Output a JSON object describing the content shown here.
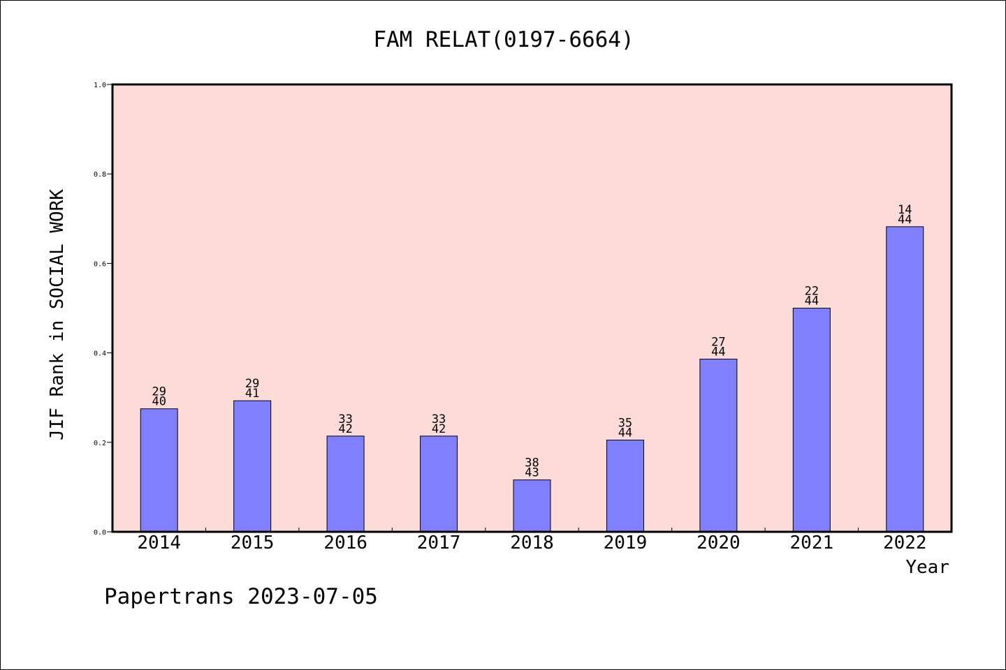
{
  "chart_data": {
    "type": "bar",
    "title": "FAM RELAT(0197-6664)",
    "xlabel": "Year",
    "ylabel": "JIF Rank in SOCIAL WORK",
    "ylim": [
      0,
      1.0
    ],
    "yticks": [
      "0.0",
      "0.2",
      "0.4",
      "0.6",
      "0.8",
      "1.0"
    ],
    "categories": [
      "2014",
      "2015",
      "2016",
      "2017",
      "2018",
      "2019",
      "2020",
      "2021",
      "2022"
    ],
    "values": [
      0.275,
      0.293,
      0.214,
      0.214,
      0.116,
      0.205,
      0.386,
      0.5,
      0.682
    ],
    "bar_labels": [
      [
        "29",
        "40"
      ],
      [
        "29",
        "41"
      ],
      [
        "33",
        "42"
      ],
      [
        "33",
        "42"
      ],
      [
        "38",
        "43"
      ],
      [
        "35",
        "44"
      ],
      [
        "27",
        "44"
      ],
      [
        "22",
        "44"
      ],
      [
        "14",
        "44"
      ]
    ],
    "grid": false,
    "colors": {
      "plot_bg": "#fddbd8",
      "bar": "#8080ff",
      "bar_edge": "#000000"
    }
  },
  "footer": {
    "text": "Papertrans 2023-07-05"
  }
}
